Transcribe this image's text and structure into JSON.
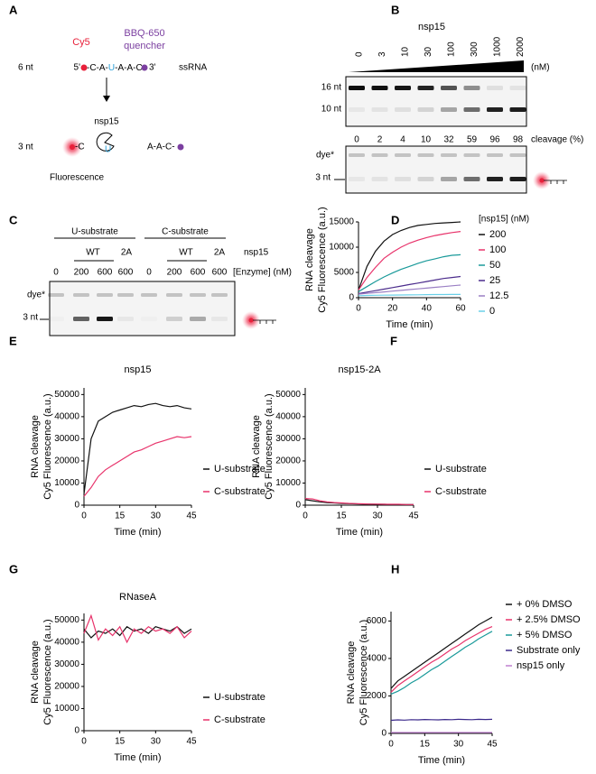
{
  "panel_letters": [
    "A",
    "B",
    "C",
    "D",
    "E",
    "F",
    "G",
    "H"
  ],
  "schematic": {
    "cy5": "Cy5",
    "quencher": [
      "BBQ-650",
      "quencher"
    ],
    "length_full": "6 nt",
    "five_prime": "5'",
    "seq_left": "-C-A-",
    "seq_u": "U",
    "seq_right": "-A-A-C-",
    "three_prime": "3'",
    "ssrna": "ssRNA",
    "enzyme": "nsp15",
    "length_product": "3 nt",
    "product_c": "-C",
    "product_u": "U",
    "product_right": "A-A-C-",
    "readout": "Fluorescence"
  },
  "gel_b": {
    "enzyme": "nsp15",
    "concentrations": [
      0,
      3,
      10,
      30,
      100,
      300,
      1000,
      2000
    ],
    "unit": "(nM)",
    "cleavage": [
      0,
      2,
      4,
      10,
      32,
      59,
      96,
      98
    ],
    "cleavage_label": "cleavage (%)",
    "bands_top": [
      "16 nt",
      "10 nt"
    ],
    "bands_bottom": [
      "dye*",
      "3 nt"
    ]
  },
  "gel_c": {
    "substrates": [
      "U-substrate",
      "C-substrate"
    ],
    "variants": [
      "WT",
      "2A",
      "WT",
      "2A"
    ],
    "enzyme": "nsp15",
    "concentrations": [
      0,
      200,
      600,
      600,
      0,
      200,
      600,
      600
    ],
    "concentration_label": "[Enzyme] (nM)",
    "bands": [
      "dye*",
      "3 nt"
    ]
  },
  "chart_data": [
    {
      "type": "line",
      "x": [
        0,
        5,
        10,
        15,
        20,
        25,
        30,
        35,
        40,
        45,
        50,
        55,
        60
      ],
      "xlim": [
        0,
        60
      ],
      "xticks": [
        0,
        20,
        40,
        60
      ],
      "ylim": [
        0,
        15000
      ],
      "yticks": [
        0,
        5000,
        10000,
        15000
      ],
      "xlabel": "Time (min)",
      "ylabel": [
        "RNA cleavage",
        "Cy5 Fluorescence (a.u.)"
      ],
      "legend_title": "[nsp15] (nM)",
      "series": [
        {
          "name": "200",
          "color": "#111111",
          "values": [
            1500,
            6200,
            9200,
            11200,
            12500,
            13300,
            13900,
            14300,
            14500,
            14700,
            14800,
            14900,
            15000
          ]
        },
        {
          "name": "100",
          "color": "#e8336b",
          "values": [
            1500,
            4000,
            6000,
            7800,
            9000,
            10000,
            10800,
            11400,
            11900,
            12300,
            12600,
            12900,
            13100
          ]
        },
        {
          "name": "50",
          "color": "#1a9a9a",
          "values": [
            1200,
            2200,
            3200,
            4100,
            4900,
            5600,
            6200,
            6800,
            7300,
            7700,
            8100,
            8400,
            8500
          ]
        },
        {
          "name": "25",
          "color": "#4b2c8c",
          "values": [
            800,
            1100,
            1400,
            1700,
            2000,
            2300,
            2600,
            2900,
            3200,
            3500,
            3800,
            4000,
            4200
          ]
        },
        {
          "name": "12.5",
          "color": "#9a7fc4",
          "values": [
            700,
            850,
            1000,
            1150,
            1300,
            1450,
            1600,
            1750,
            1900,
            2050,
            2200,
            2350,
            2500
          ]
        },
        {
          "name": "0",
          "color": "#6ad0e8",
          "values": [
            400,
            450,
            480,
            500,
            520,
            540,
            560,
            580,
            600,
            620,
            630,
            640,
            650
          ]
        }
      ]
    },
    {
      "type": "line",
      "title": "nsp15",
      "x": [
        0,
        3,
        6,
        9,
        12,
        15,
        18,
        21,
        24,
        27,
        30,
        33,
        36,
        39,
        42,
        45
      ],
      "xlim": [
        0,
        45
      ],
      "xticks": [
        0,
        15,
        30,
        45
      ],
      "ylim": [
        0,
        53000
      ],
      "yticks": [
        0,
        10000,
        20000,
        30000,
        40000,
        50000
      ],
      "xlabel": "Time (min)",
      "ylabel": [
        "RNA cleavage",
        "Cy5 Fluorescence (a.u.)"
      ],
      "series": [
        {
          "name": "U-substrate",
          "color": "#111111",
          "values": [
            5000,
            30000,
            38000,
            40000,
            42000,
            43000,
            44000,
            45000,
            44500,
            45500,
            46000,
            45000,
            44500,
            45000,
            44000,
            43500
          ]
        },
        {
          "name": "C-substrate",
          "color": "#e8336b",
          "values": [
            4000,
            8000,
            13000,
            16000,
            18000,
            20000,
            22000,
            24000,
            25000,
            26500,
            28000,
            29000,
            30000,
            31000,
            30500,
            31000
          ]
        }
      ]
    },
    {
      "type": "line",
      "title": "nsp15-2A",
      "x": [
        0,
        3,
        6,
        9,
        12,
        15,
        18,
        21,
        24,
        27,
        30,
        33,
        36,
        39,
        42,
        45
      ],
      "xlim": [
        0,
        45
      ],
      "xticks": [
        0,
        15,
        30,
        45
      ],
      "ylim": [
        0,
        53000
      ],
      "yticks": [
        0,
        10000,
        20000,
        30000,
        40000,
        50000
      ],
      "xlabel": "Time (min)",
      "ylabel": [
        "RNA cleavage",
        "Cy5 Fluorescence (a.u.)"
      ],
      "series": [
        {
          "name": "U-substrate",
          "color": "#111111",
          "values": [
            2500,
            2000,
            1500,
            1200,
            1000,
            800,
            700,
            600,
            500,
            500,
            400,
            400,
            300,
            300,
            300,
            300
          ]
        },
        {
          "name": "C-substrate",
          "color": "#e8336b",
          "values": [
            3000,
            2800,
            2000,
            1500,
            1200,
            1000,
            800,
            700,
            600,
            500,
            500,
            400,
            400,
            400,
            300,
            300
          ]
        }
      ]
    },
    {
      "type": "line",
      "title": "RNaseA",
      "x": [
        0,
        3,
        6,
        9,
        12,
        15,
        18,
        21,
        24,
        27,
        30,
        33,
        36,
        39,
        42,
        45
      ],
      "xlim": [
        0,
        45
      ],
      "xticks": [
        0,
        15,
        30,
        45
      ],
      "ylim": [
        0,
        53000
      ],
      "yticks": [
        0,
        10000,
        20000,
        30000,
        40000,
        50000
      ],
      "xlabel": "Time (min)",
      "ylabel": [
        "RNA cleavage",
        "Cy5 Fluorescence (a.u.)"
      ],
      "series": [
        {
          "name": "U-substrate",
          "color": "#111111",
          "values": [
            46000,
            42000,
            45000,
            44000,
            46000,
            43000,
            47000,
            45000,
            46000,
            44000,
            47000,
            46000,
            45000,
            47000,
            44000,
            46000
          ]
        },
        {
          "name": "C-substrate",
          "color": "#e8336b",
          "values": [
            44000,
            52000,
            41000,
            46000,
            43000,
            47000,
            40000,
            46000,
            44000,
            47000,
            45000,
            46000,
            44000,
            47000,
            42000,
            45000
          ]
        }
      ]
    },
    {
      "type": "line",
      "x": [
        0,
        3,
        6,
        9,
        12,
        15,
        18,
        21,
        24,
        27,
        30,
        33,
        36,
        39,
        42,
        45
      ],
      "xlim": [
        0,
        45
      ],
      "xticks": [
        0,
        15,
        30,
        45
      ],
      "ylim": [
        0,
        6500
      ],
      "yticks": [
        0,
        2000,
        4000,
        6000
      ],
      "xlabel": "Time (min)",
      "ylabel": [
        "RNA cleavage",
        "Cy5 Fluorescence (a.u.)"
      ],
      "series": [
        {
          "name": "+ 0% DMSO",
          "color": "#111111",
          "values": [
            2400,
            2800,
            3050,
            3300,
            3550,
            3800,
            4050,
            4300,
            4550,
            4800,
            5050,
            5300,
            5550,
            5800,
            6000,
            6200
          ]
        },
        {
          "name": "+ 2.5% DMSO",
          "color": "#e8336b",
          "values": [
            2200,
            2550,
            2800,
            3050,
            3300,
            3550,
            3800,
            4000,
            4250,
            4500,
            4700,
            4950,
            5150,
            5350,
            5550,
            5700
          ]
        },
        {
          "name": "+ 5% DMSO",
          "color": "#1a9a9a",
          "values": [
            2100,
            2250,
            2450,
            2700,
            2900,
            3150,
            3400,
            3600,
            3850,
            4100,
            4350,
            4600,
            4800,
            5050,
            5250,
            5450
          ]
        },
        {
          "name": "Substrate only",
          "color": "#3c2a8c",
          "values": [
            700,
            720,
            710,
            730,
            720,
            740,
            730,
            720,
            740,
            730,
            750,
            740,
            730,
            750,
            740,
            750
          ]
        },
        {
          "name": "nsp15 only",
          "color": "#c080d0",
          "values": [
            50,
            50,
            50,
            50,
            50,
            50,
            50,
            50,
            50,
            50,
            50,
            50,
            50,
            50,
            50,
            50
          ]
        }
      ]
    }
  ]
}
